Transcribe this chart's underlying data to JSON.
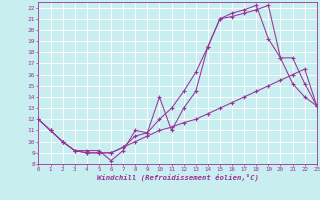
{
  "background_color": "#c8eef0",
  "grid_color": "#ffffff",
  "line_color": "#993399",
  "xlabel": "Windchill (Refroidissement éolien,°C)",
  "xlim": [
    0,
    23
  ],
  "ylim": [
    8,
    22.5
  ],
  "xticks": [
    0,
    1,
    2,
    3,
    4,
    5,
    6,
    7,
    8,
    9,
    10,
    11,
    12,
    13,
    14,
    15,
    16,
    17,
    18,
    19,
    20,
    21,
    22,
    23
  ],
  "yticks": [
    8,
    9,
    10,
    11,
    12,
    13,
    14,
    15,
    16,
    17,
    18,
    19,
    20,
    21,
    22
  ],
  "curve1_x": [
    0,
    1,
    2,
    3,
    4,
    5,
    6,
    7,
    8,
    9,
    10,
    11,
    12,
    13,
    14,
    15,
    16,
    17,
    18,
    19,
    20,
    21,
    22,
    23
  ],
  "curve1_y": [
    12.0,
    11.0,
    10.0,
    9.2,
    9.2,
    9.2,
    8.3,
    9.2,
    11.0,
    10.8,
    14.0,
    11.0,
    13.0,
    14.5,
    18.5,
    21.0,
    21.5,
    21.8,
    22.2,
    19.2,
    17.5,
    15.2,
    14.0,
    13.2
  ],
  "curve2_x": [
    0,
    1,
    2,
    3,
    4,
    5,
    6,
    7,
    8,
    9,
    10,
    11,
    12,
    13,
    14,
    15,
    16,
    17,
    18,
    19,
    20,
    21,
    22,
    23
  ],
  "curve2_y": [
    12.0,
    11.0,
    10.0,
    9.2,
    9.0,
    9.0,
    9.0,
    9.5,
    10.5,
    10.8,
    12.0,
    13.0,
    14.5,
    16.2,
    18.5,
    21.0,
    21.2,
    21.5,
    21.8,
    22.2,
    17.5,
    17.5,
    15.2,
    13.2
  ],
  "curve3_x": [
    0,
    1,
    2,
    3,
    4,
    5,
    6,
    7,
    8,
    9,
    10,
    11,
    12,
    13,
    14,
    15,
    16,
    17,
    18,
    19,
    20,
    21,
    22,
    23
  ],
  "curve3_y": [
    12.0,
    11.0,
    10.0,
    9.2,
    9.0,
    9.0,
    9.0,
    9.5,
    10.0,
    10.5,
    11.0,
    11.3,
    11.7,
    12.0,
    12.5,
    13.0,
    13.5,
    14.0,
    14.5,
    15.0,
    15.5,
    16.0,
    16.5,
    13.2
  ]
}
